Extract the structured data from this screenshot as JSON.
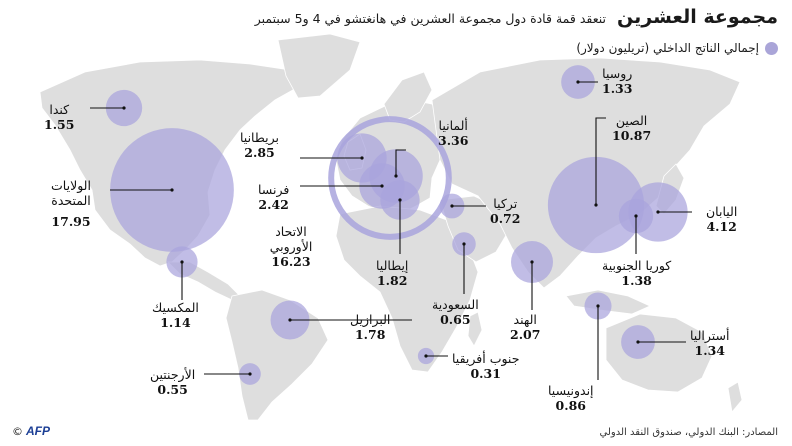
{
  "header": {
    "title": "مجموعة العشرين",
    "subtitle": "تنعقد قمة قادة دول مجموعة العشرين في هانغتشو في 4 و5 سبتمبر"
  },
  "legend": {
    "label": "إجمالي الناتج الداخلي (تريليون دولار)"
  },
  "footer": {
    "source": "المصادر: البنك الدولي، صندوق النقد الدولي",
    "credit": "©",
    "agency": "AFP"
  },
  "colors": {
    "bubble": "#a9a4dd",
    "bubble_edge": "#8f89cf",
    "land": "#dcdcdc",
    "ocean": "#ffffff",
    "leader": "#111111"
  },
  "countries": [
    {
      "id": "usa",
      "name": "الولايات المتحدة",
      "value": "17.95",
      "gdp": 17.95
    },
    {
      "id": "china",
      "name": "الصين",
      "value": "10.87",
      "gdp": 10.87
    },
    {
      "id": "eu",
      "name": "الاتحاد الأوروبي",
      "value": "16.23",
      "gdp": 16.23
    },
    {
      "id": "japan",
      "name": "اليابان",
      "value": "4.12",
      "gdp": 4.12
    },
    {
      "id": "germany",
      "name": "ألمانيا",
      "value": "3.36",
      "gdp": 3.36
    },
    {
      "id": "uk",
      "name": "بريطانيا",
      "value": "2.85",
      "gdp": 2.85
    },
    {
      "id": "france",
      "name": "فرنسا",
      "value": "2.42",
      "gdp": 2.42
    },
    {
      "id": "india",
      "name": "الهند",
      "value": "2.07",
      "gdp": 2.07
    },
    {
      "id": "italy",
      "name": "إيطاليا",
      "value": "1.82",
      "gdp": 1.82
    },
    {
      "id": "brazil",
      "name": "البرازيل",
      "value": "1.78",
      "gdp": 1.78
    },
    {
      "id": "canada",
      "name": "كندا",
      "value": "1.55",
      "gdp": 1.55
    },
    {
      "id": "korea",
      "name": "كوريا الجنوبية",
      "value": "1.38",
      "gdp": 1.38
    },
    {
      "id": "australia",
      "name": "أستراليا",
      "value": "1.34",
      "gdp": 1.34
    },
    {
      "id": "russia",
      "name": "روسيا",
      "value": "1.33",
      "gdp": 1.33
    },
    {
      "id": "mexico",
      "name": "المكسيك",
      "value": "1.14",
      "gdp": 1.14
    },
    {
      "id": "indonesia",
      "name": "إندونيسيا",
      "value": "0.86",
      "gdp": 0.86
    },
    {
      "id": "turkey",
      "name": "تركيا",
      "value": "0.72",
      "gdp": 0.72
    },
    {
      "id": "saudi",
      "name": "السعودية",
      "value": "0.65",
      "gdp": 0.65
    },
    {
      "id": "argentina",
      "name": "الأرجنتين",
      "value": "0.55",
      "gdp": 0.55
    },
    {
      "id": "southafrica",
      "name": "جنوب أفريقيا",
      "value": "0.31",
      "gdp": 0.31
    }
  ]
}
